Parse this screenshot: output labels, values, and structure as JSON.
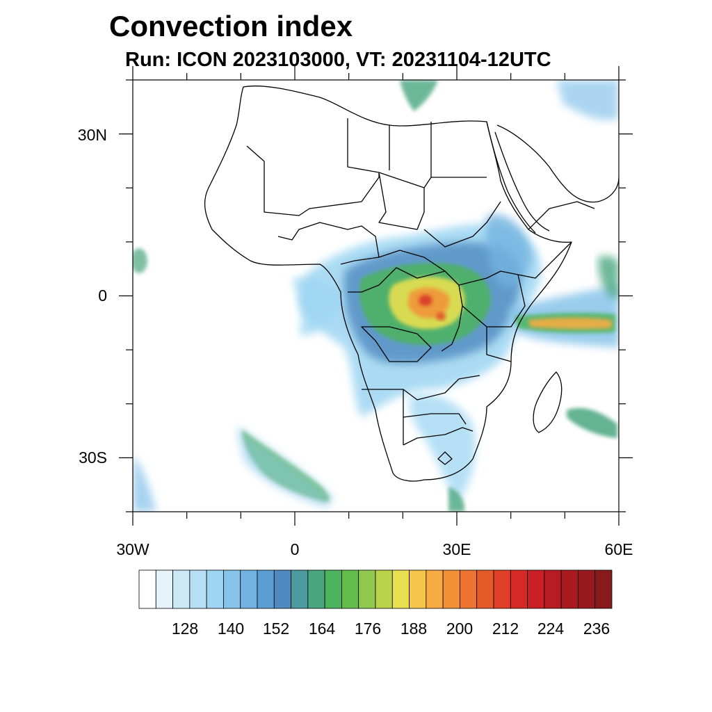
{
  "header": {
    "title": "Convection index",
    "subtitle": "Run: ICON 2023103000,  VT: 20231104-12UTC"
  },
  "map": {
    "region": "Africa",
    "lon_range": [
      -30,
      60
    ],
    "lat_range": [
      -40,
      40
    ],
    "lat_ticks": [
      {
        "value": 30,
        "label": "30N"
      },
      {
        "value": 0,
        "label": "0"
      },
      {
        "value": -30,
        "label": "30S"
      }
    ],
    "lon_ticks": [
      {
        "value": -30,
        "label": "30W"
      },
      {
        "value": 0,
        "label": "0"
      },
      {
        "value": 30,
        "label": "30E"
      },
      {
        "value": 60,
        "label": "60E"
      }
    ]
  },
  "colorbar": {
    "colors": [
      "#ffffff",
      "#e6f3fb",
      "#cce8f6",
      "#b6def5",
      "#9dd5f2",
      "#88c4ea",
      "#73b2e0",
      "#5a9ed4",
      "#4f8ac0",
      "#4a9aa0",
      "#4aa680",
      "#4cb45c",
      "#64bc4c",
      "#90c850",
      "#bad24c",
      "#e8e050",
      "#f6c64a",
      "#f6ac42",
      "#f29038",
      "#ec7430",
      "#e65a2a",
      "#e04028",
      "#d62a26",
      "#c82024",
      "#b81c22",
      "#a81a20",
      "#961a1e",
      "#861a1c"
    ],
    "labels": [
      "128",
      "140",
      "152",
      "164",
      "176",
      "188",
      "200",
      "212",
      "224",
      "236"
    ]
  }
}
